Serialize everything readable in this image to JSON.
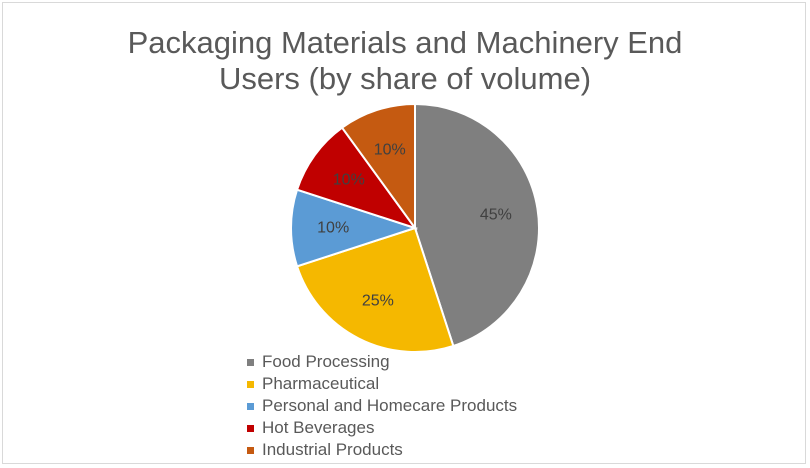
{
  "chart_data": {
    "type": "pie",
    "title_lines": [
      "Packaging Materials and Machinery End",
      "Users (by share of volume)"
    ],
    "categories": [
      "Food Processing",
      "Pharmaceutical",
      "Personal and Homecare Products",
      "Hot Beverages",
      "Industrial Products"
    ],
    "values": [
      45,
      25,
      10,
      10,
      10
    ],
    "data_labels": [
      "45%",
      "25%",
      "10%",
      "10%",
      "10%"
    ],
    "colors": [
      "#7f7f7f",
      "#f5b800",
      "#5b9bd5",
      "#c00000",
      "#c55a11"
    ],
    "legend_position": "bottom",
    "start_angle_deg": 0,
    "direction": "clockwise"
  }
}
